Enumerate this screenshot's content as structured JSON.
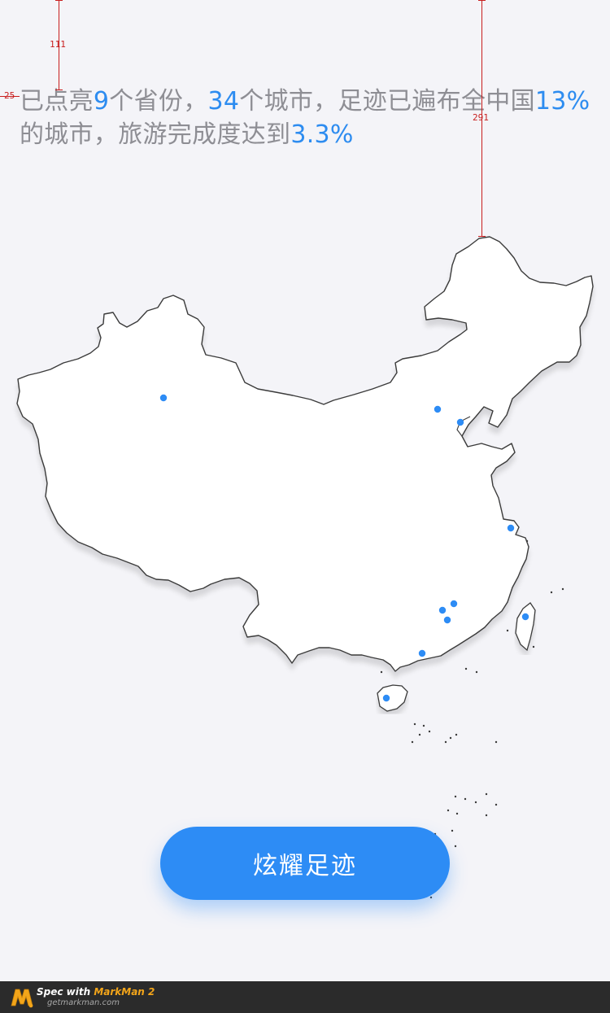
{
  "summary": {
    "t1": "已点亮",
    "provinces": "9",
    "t2": "个省份，",
    "cities": "34",
    "t3": "个城市，足迹已遍布全中国",
    "coverage": "13%",
    "t4": "的城市，旅游完成度达到",
    "completion": "3.3%"
  },
  "spec": {
    "left_measure": "111",
    "side_measure": "25",
    "right_measure": "291"
  },
  "cta": {
    "label": "炫耀足迹"
  },
  "footer": {
    "prefix": "Spec with ",
    "brand": "MarkMan 2",
    "url": "getmarkman.com"
  },
  "colors": {
    "highlight": "#2d8cf0",
    "text": "#8e8e94",
    "background": "#f4f4f8",
    "button": "#2d8cf5",
    "marker": "#2d8cf5",
    "spec_guides": "#c81e1e"
  },
  "map": {
    "icon": "china-map-icon",
    "visited_markers": 11
  }
}
